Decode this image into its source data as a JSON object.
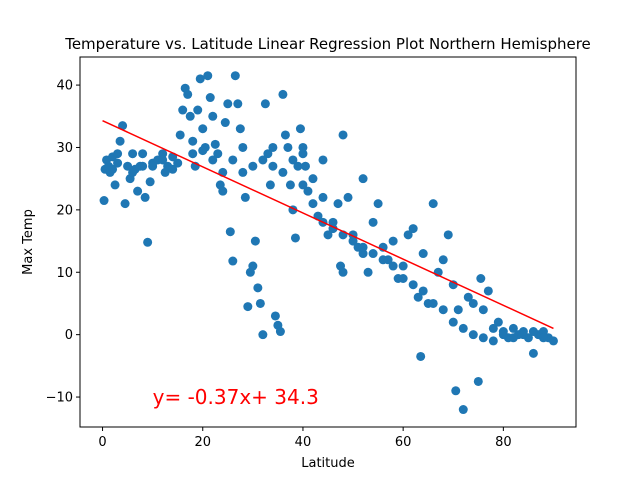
{
  "chart_data": {
    "type": "scatter",
    "title": "Temperature vs. Latitude Linear Regression Plot Northern Hemisphere",
    "xlabel": "Latitude",
    "ylabel": "Max Temp",
    "xlim": [
      -4.5,
      94.5
    ],
    "ylim": [
      -14.8,
      44.5
    ],
    "xticks": [
      0,
      20,
      40,
      60,
      80
    ],
    "yticks": [
      -10,
      0,
      10,
      20,
      30,
      40
    ],
    "grid": false,
    "colors": {
      "points": "#1f77b4",
      "line": "#ff0000",
      "annotation": "#ff0000"
    },
    "regression": {
      "slope": -0.37,
      "intercept": 34.3,
      "x_range": [
        0,
        90
      ]
    },
    "annotation": {
      "text": "y= -0.37x+ 34.3",
      "x": 10,
      "y": -10
    },
    "series": [
      {
        "points": [
          [
            0.3,
            21.5
          ],
          [
            0.5,
            26.5
          ],
          [
            0.8,
            28
          ],
          [
            1.2,
            27
          ],
          [
            1.5,
            26
          ],
          [
            2,
            28.5
          ],
          [
            2.5,
            24
          ],
          [
            3,
            29
          ],
          [
            3.5,
            31
          ],
          [
            4,
            33.5
          ],
          [
            4.5,
            21
          ],
          [
            5,
            27
          ],
          [
            5.5,
            25
          ],
          [
            6,
            29
          ],
          [
            6.5,
            26.5
          ],
          [
            7,
            23
          ],
          [
            7.5,
            27
          ],
          [
            8,
            29
          ],
          [
            8.5,
            22
          ],
          [
            9,
            14.8
          ],
          [
            9.5,
            24.5
          ],
          [
            10,
            27.5
          ],
          [
            11,
            28
          ],
          [
            12,
            29
          ],
          [
            12.5,
            26
          ],
          [
            13,
            27
          ],
          [
            14,
            28.5
          ],
          [
            15,
            27.5
          ],
          [
            15.5,
            32
          ],
          [
            16,
            36
          ],
          [
            16.5,
            39.5
          ],
          [
            17,
            38.5
          ],
          [
            17.5,
            35
          ],
          [
            18,
            31
          ],
          [
            18.5,
            27
          ],
          [
            19,
            36
          ],
          [
            19.5,
            41
          ],
          [
            20,
            33
          ],
          [
            20.5,
            30
          ],
          [
            21,
            41.5
          ],
          [
            21.5,
            38
          ],
          [
            22,
            35
          ],
          [
            22.5,
            30.5
          ],
          [
            23,
            29
          ],
          [
            23.5,
            24
          ],
          [
            24,
            23
          ],
          [
            24.5,
            34
          ],
          [
            25,
            37
          ],
          [
            25.5,
            16.5
          ],
          [
            26,
            11.8
          ],
          [
            26.5,
            41.5
          ],
          [
            27,
            37
          ],
          [
            27.5,
            33
          ],
          [
            28,
            26
          ],
          [
            28.5,
            22
          ],
          [
            29,
            4.5
          ],
          [
            29.5,
            10
          ],
          [
            30,
            11
          ],
          [
            30.5,
            15
          ],
          [
            31,
            7.5
          ],
          [
            31.5,
            5
          ],
          [
            32,
            0
          ],
          [
            32.5,
            37
          ],
          [
            33,
            29
          ],
          [
            33.5,
            24
          ],
          [
            34,
            27
          ],
          [
            34.5,
            3
          ],
          [
            35,
            1.5
          ],
          [
            35.5,
            0.5
          ],
          [
            36,
            38.5
          ],
          [
            36.5,
            32
          ],
          [
            37,
            30
          ],
          [
            37.5,
            24
          ],
          [
            38,
            20
          ],
          [
            38.5,
            15.5
          ],
          [
            39,
            27
          ],
          [
            39.5,
            33
          ],
          [
            40,
            29
          ],
          [
            40.5,
            27
          ],
          [
            41,
            23
          ],
          [
            42,
            25
          ],
          [
            43,
            19
          ],
          [
            44,
            22
          ],
          [
            45,
            16
          ],
          [
            46,
            18
          ],
          [
            47,
            21
          ],
          [
            47.5,
            11
          ],
          [
            48,
            10
          ],
          [
            49,
            22
          ],
          [
            50,
            16
          ],
          [
            51,
            14
          ],
          [
            52,
            13
          ],
          [
            53,
            10
          ],
          [
            54,
            18
          ],
          [
            55,
            21
          ],
          [
            56,
            14
          ],
          [
            57,
            12
          ],
          [
            58,
            15
          ],
          [
            59,
            9
          ],
          [
            60,
            11
          ],
          [
            61,
            16
          ],
          [
            62,
            17
          ],
          [
            63,
            6
          ],
          [
            63.5,
            -3.5
          ],
          [
            64,
            13
          ],
          [
            65,
            5
          ],
          [
            66,
            21
          ],
          [
            67,
            10
          ],
          [
            68,
            12
          ],
          [
            69,
            16
          ],
          [
            70,
            8
          ],
          [
            70.5,
            -9
          ],
          [
            71,
            4
          ],
          [
            72,
            -12
          ],
          [
            73,
            6
          ],
          [
            74,
            5
          ],
          [
            75,
            -7.5
          ],
          [
            75.5,
            9
          ],
          [
            76,
            4
          ],
          [
            77,
            7
          ],
          [
            78,
            1
          ],
          [
            79,
            2
          ],
          [
            80,
            0.5
          ],
          [
            81,
            -0.5
          ],
          [
            82,
            1
          ],
          [
            83,
            0
          ],
          [
            84,
            0.5
          ],
          [
            85,
            -0.5
          ],
          [
            86,
            -3
          ],
          [
            87,
            0
          ],
          [
            88,
            0.5
          ],
          [
            89,
            -0.5
          ],
          [
            90,
            -1
          ],
          [
            2,
            26.5
          ],
          [
            3,
            27.5
          ],
          [
            6,
            26
          ],
          [
            8,
            27
          ],
          [
            10,
            27
          ],
          [
            12,
            28
          ],
          [
            14,
            26.5
          ],
          [
            18,
            29
          ],
          [
            20,
            29.5
          ],
          [
            22,
            28
          ],
          [
            24,
            26
          ],
          [
            26,
            28
          ],
          [
            28,
            30
          ],
          [
            30,
            27
          ],
          [
            32,
            28
          ],
          [
            34,
            30
          ],
          [
            36,
            26
          ],
          [
            38,
            28
          ],
          [
            40,
            24
          ],
          [
            42,
            21
          ],
          [
            44,
            18
          ],
          [
            46,
            17
          ],
          [
            48,
            16
          ],
          [
            50,
            15
          ],
          [
            52,
            14
          ],
          [
            54,
            13
          ],
          [
            56,
            12
          ],
          [
            58,
            11
          ],
          [
            60,
            9
          ],
          [
            62,
            8
          ],
          [
            64,
            7
          ],
          [
            66,
            5
          ],
          [
            68,
            4
          ],
          [
            70,
            2
          ],
          [
            72,
            1
          ],
          [
            74,
            0
          ],
          [
            76,
            -0.5
          ],
          [
            78,
            -1
          ],
          [
            80,
            0
          ],
          [
            82,
            -0.5
          ],
          [
            84,
            0
          ],
          [
            86,
            0.5
          ],
          [
            88,
            -0.5
          ],
          [
            40,
            30
          ],
          [
            44,
            28
          ],
          [
            48,
            32
          ],
          [
            52,
            25
          ]
        ]
      }
    ]
  }
}
